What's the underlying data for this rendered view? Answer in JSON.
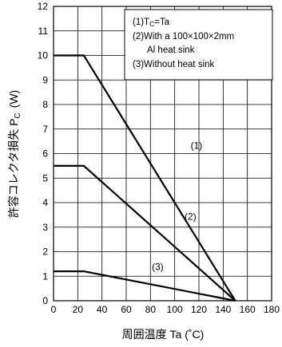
{
  "chart_data": {
    "type": "line",
    "xlabel": "周囲温度  Ta  (˚C)",
    "ylabel": "許容コレクタ損失  P",
    "ylabel_sub": "C",
    "ylabel_unit": "(W)",
    "xlim": [
      0,
      180
    ],
    "ylim": [
      0,
      12
    ],
    "x_ticks": [
      "0",
      "20",
      "40",
      "60",
      "80",
      "100",
      "120",
      "140",
      "160",
      "180"
    ],
    "y_ticks": [
      "0",
      "1",
      "2",
      "3",
      "4",
      "5",
      "6",
      "7",
      "8",
      "9",
      "10",
      "11",
      "12"
    ],
    "grid": true,
    "series": [
      {
        "name": "(1)",
        "points": [
          [
            0,
            10
          ],
          [
            25,
            10
          ],
          [
            150,
            0
          ]
        ]
      },
      {
        "name": "(2)",
        "points": [
          [
            0,
            5.5
          ],
          [
            25,
            5.5
          ],
          [
            150,
            0
          ]
        ]
      },
      {
        "name": "(3)",
        "points": [
          [
            0,
            1.2
          ],
          [
            25,
            1.2
          ],
          [
            150,
            0
          ]
        ]
      }
    ],
    "legend": {
      "position": "top-right",
      "lines": [
        {
          "main": "(1)T",
          "sub": "C",
          "rest": "=Ta"
        },
        {
          "main": "(2)With a 100×100×2mm"
        },
        {
          "main": "Al heat sink"
        },
        {
          "main": "(3)Without heat sink"
        }
      ]
    }
  }
}
